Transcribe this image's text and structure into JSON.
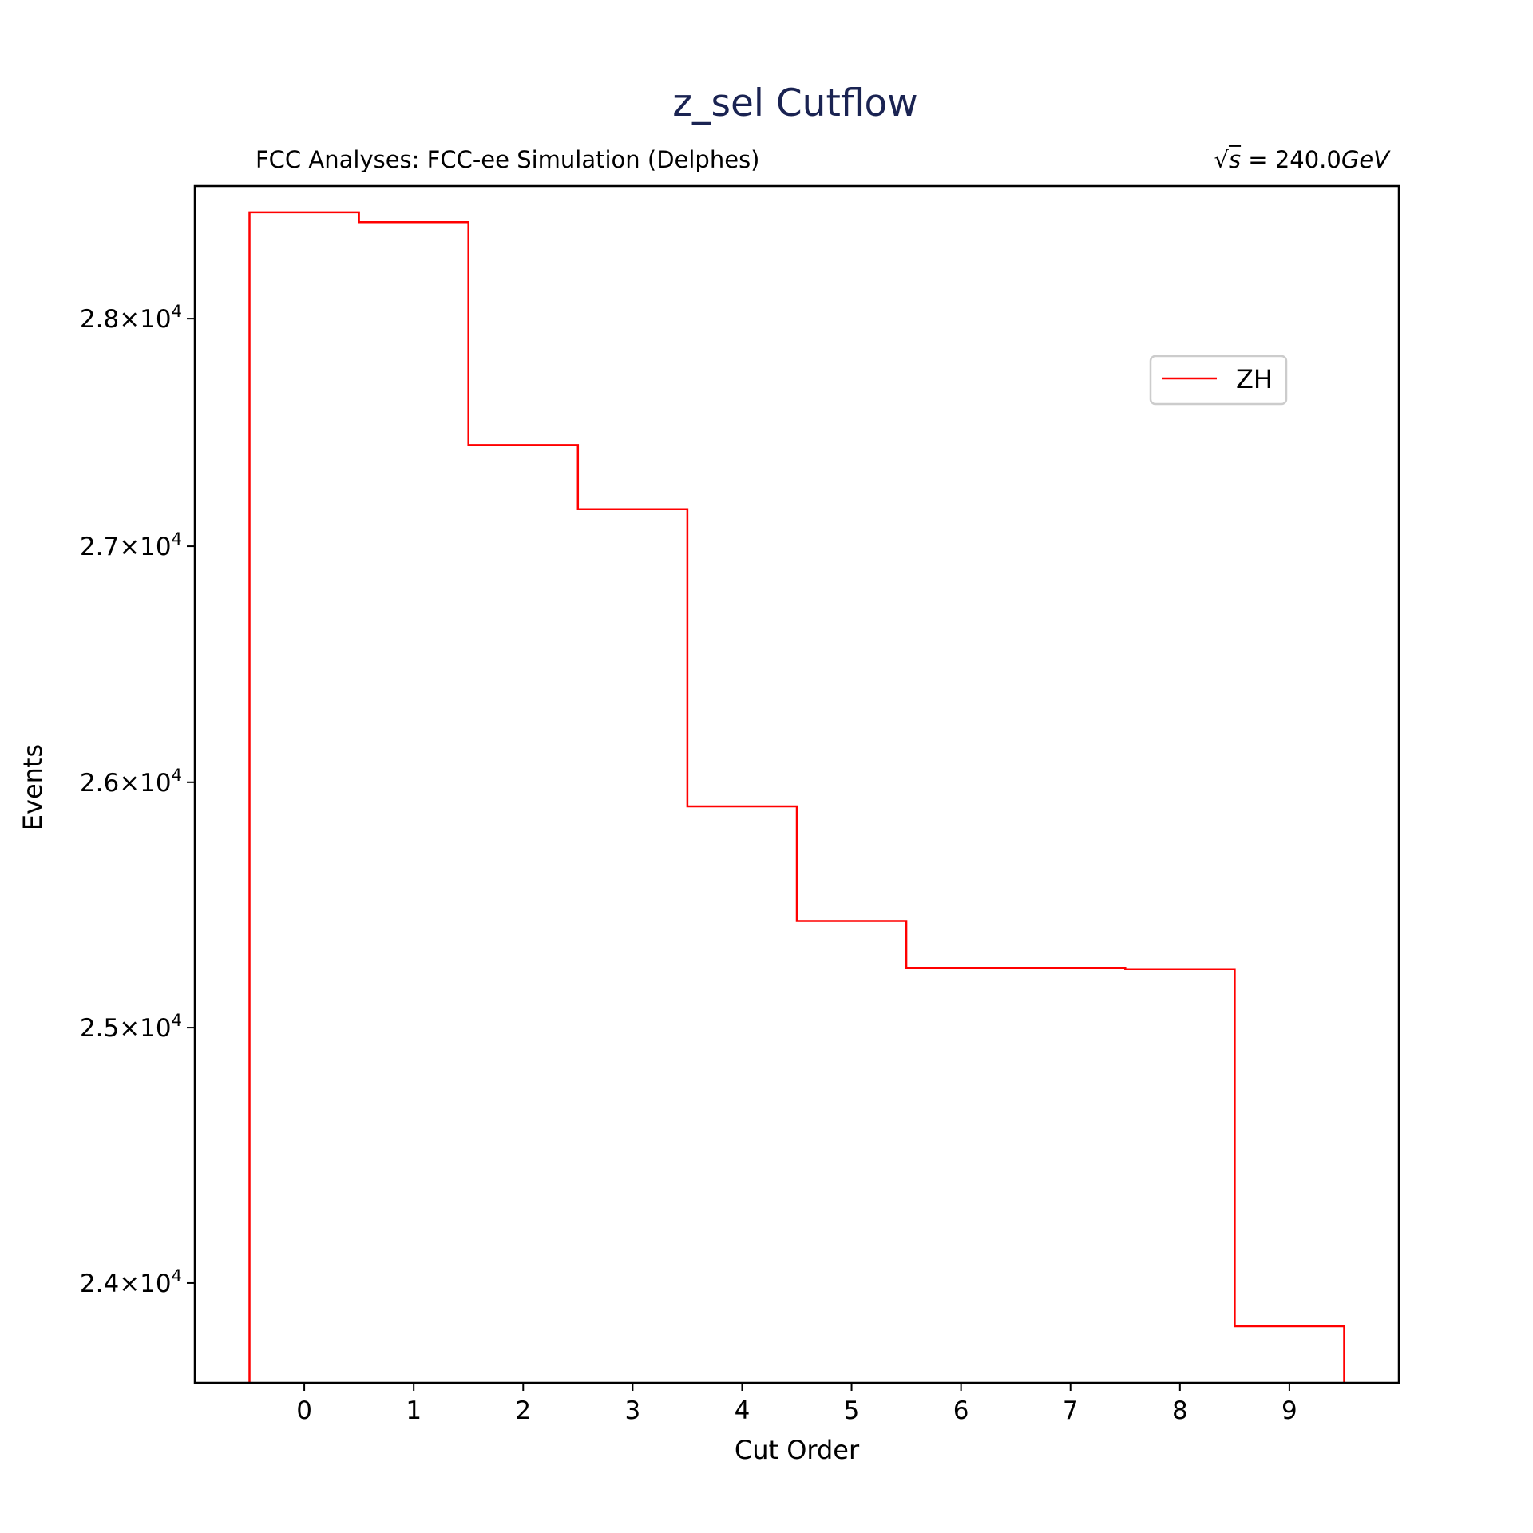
{
  "chart_data": {
    "type": "histogram-step",
    "title": "z_sel Cutflow",
    "subtitle_left": "FCC Analyses: FCC-ee Simulation (Delphes)",
    "subtitle_right": {
      "sqrt_symbol": "√",
      "s": "s",
      "equals": " = 240.0",
      "unit": "GeV"
    },
    "xlabel": "Cut Order",
    "ylabel": "Events",
    "y_scale": "log",
    "xlim": [
      -1.0,
      10.0
    ],
    "ylim": [
      23620,
      28600
    ],
    "x_ticks": [
      0,
      1,
      2,
      3,
      4,
      5,
      6,
      7,
      8,
      9
    ],
    "x_tick_labels": [
      "0",
      "1",
      "2",
      "3",
      "4",
      "5",
      "6",
      "7",
      "8",
      "9"
    ],
    "y_ticks": [
      {
        "value": 24000,
        "mantissa": "2.4",
        "times": "×",
        "base": "10",
        "exp": "4"
      },
      {
        "value": 25000,
        "mantissa": "2.5",
        "times": "×",
        "base": "10",
        "exp": "4"
      },
      {
        "value": 26000,
        "mantissa": "2.6",
        "times": "×",
        "base": "10",
        "exp": "4"
      },
      {
        "value": 27000,
        "mantissa": "2.7",
        "times": "×",
        "base": "10",
        "exp": "4"
      },
      {
        "value": 28000,
        "mantissa": "2.8",
        "times": "×",
        "base": "10",
        "exp": "4"
      }
    ],
    "series": [
      {
        "name": "ZH",
        "color": "#ff0000",
        "x": [
          0,
          1,
          2,
          3,
          4,
          5,
          6,
          7,
          8,
          9
        ],
        "values": [
          28480,
          28435,
          27440,
          27160,
          25900,
          25430,
          25240,
          25240,
          25235,
          23835
        ]
      }
    ],
    "legend_position": "upper right",
    "grid": false
  },
  "colors": {
    "title": "#1a2352",
    "axes": "#000000",
    "text": "#000000"
  }
}
